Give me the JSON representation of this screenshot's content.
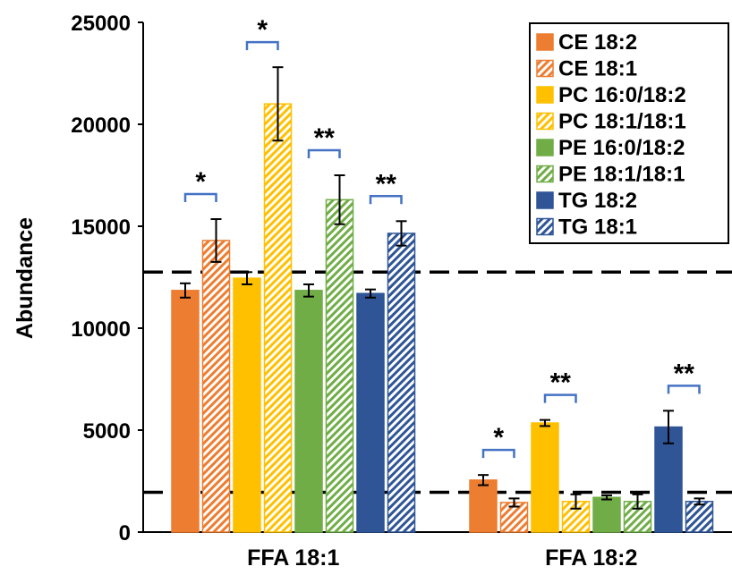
{
  "chart_data": {
    "type": "bar",
    "title": "",
    "xlabel": "",
    "ylabel": "Abundance",
    "ylim": [
      0,
      25000
    ],
    "yticks": [
      0,
      5000,
      10000,
      15000,
      20000,
      25000
    ],
    "categories": [
      "FFA 18:1",
      "FFA 18:2"
    ],
    "series": [
      {
        "name": "CE 18:2",
        "color": "#ED7D31",
        "pattern": "solid",
        "values": [
          11850,
          2550
        ],
        "errors": [
          350,
          250
        ]
      },
      {
        "name": "CE 18:1",
        "color": "#ED7D31",
        "pattern": "hatched",
        "values": [
          14300,
          1450
        ],
        "errors": [
          1050,
          200
        ]
      },
      {
        "name": "PC 16:0/18:2",
        "color": "#FFC000",
        "pattern": "solid",
        "values": [
          12450,
          5350
        ],
        "errors": [
          300,
          150
        ]
      },
      {
        "name": "PC 18:1/18:1",
        "color": "#FFC000",
        "pattern": "hatched",
        "values": [
          21000,
          1500
        ],
        "errors": [
          1800,
          350
        ]
      },
      {
        "name": "PE 16:0/18:2",
        "color": "#70AD47",
        "pattern": "solid",
        "values": [
          11850,
          1700
        ],
        "errors": [
          300,
          100
        ]
      },
      {
        "name": "PE 18:1/18:1",
        "color": "#70AD47",
        "pattern": "hatched",
        "values": [
          16300,
          1500
        ],
        "errors": [
          1200,
          350
        ]
      },
      {
        "name": "TG 18:2",
        "color": "#2F5597",
        "pattern": "solid",
        "values": [
          11700,
          5150
        ],
        "errors": [
          200,
          800
        ]
      },
      {
        "name": "TG 18:1",
        "color": "#2F5597",
        "pattern": "hatched",
        "values": [
          14650,
          1500
        ],
        "errors": [
          600,
          150
        ]
      }
    ],
    "reference_lines": [
      12750,
      1950
    ],
    "significance": [
      {
        "category": 0,
        "pair": [
          0,
          1
        ],
        "label": "*"
      },
      {
        "category": 0,
        "pair": [
          2,
          3
        ],
        "label": "*"
      },
      {
        "category": 0,
        "pair": [
          4,
          5
        ],
        "label": "**"
      },
      {
        "category": 0,
        "pair": [
          6,
          7
        ],
        "label": "**"
      },
      {
        "category": 1,
        "pair": [
          0,
          1
        ],
        "label": "*"
      },
      {
        "category": 1,
        "pair": [
          2,
          3
        ],
        "label": "**"
      },
      {
        "category": 1,
        "pair": [
          6,
          7
        ],
        "label": "**"
      }
    ],
    "bracket_color": "#4472C4",
    "legend_position": "top-right",
    "grid": false
  }
}
